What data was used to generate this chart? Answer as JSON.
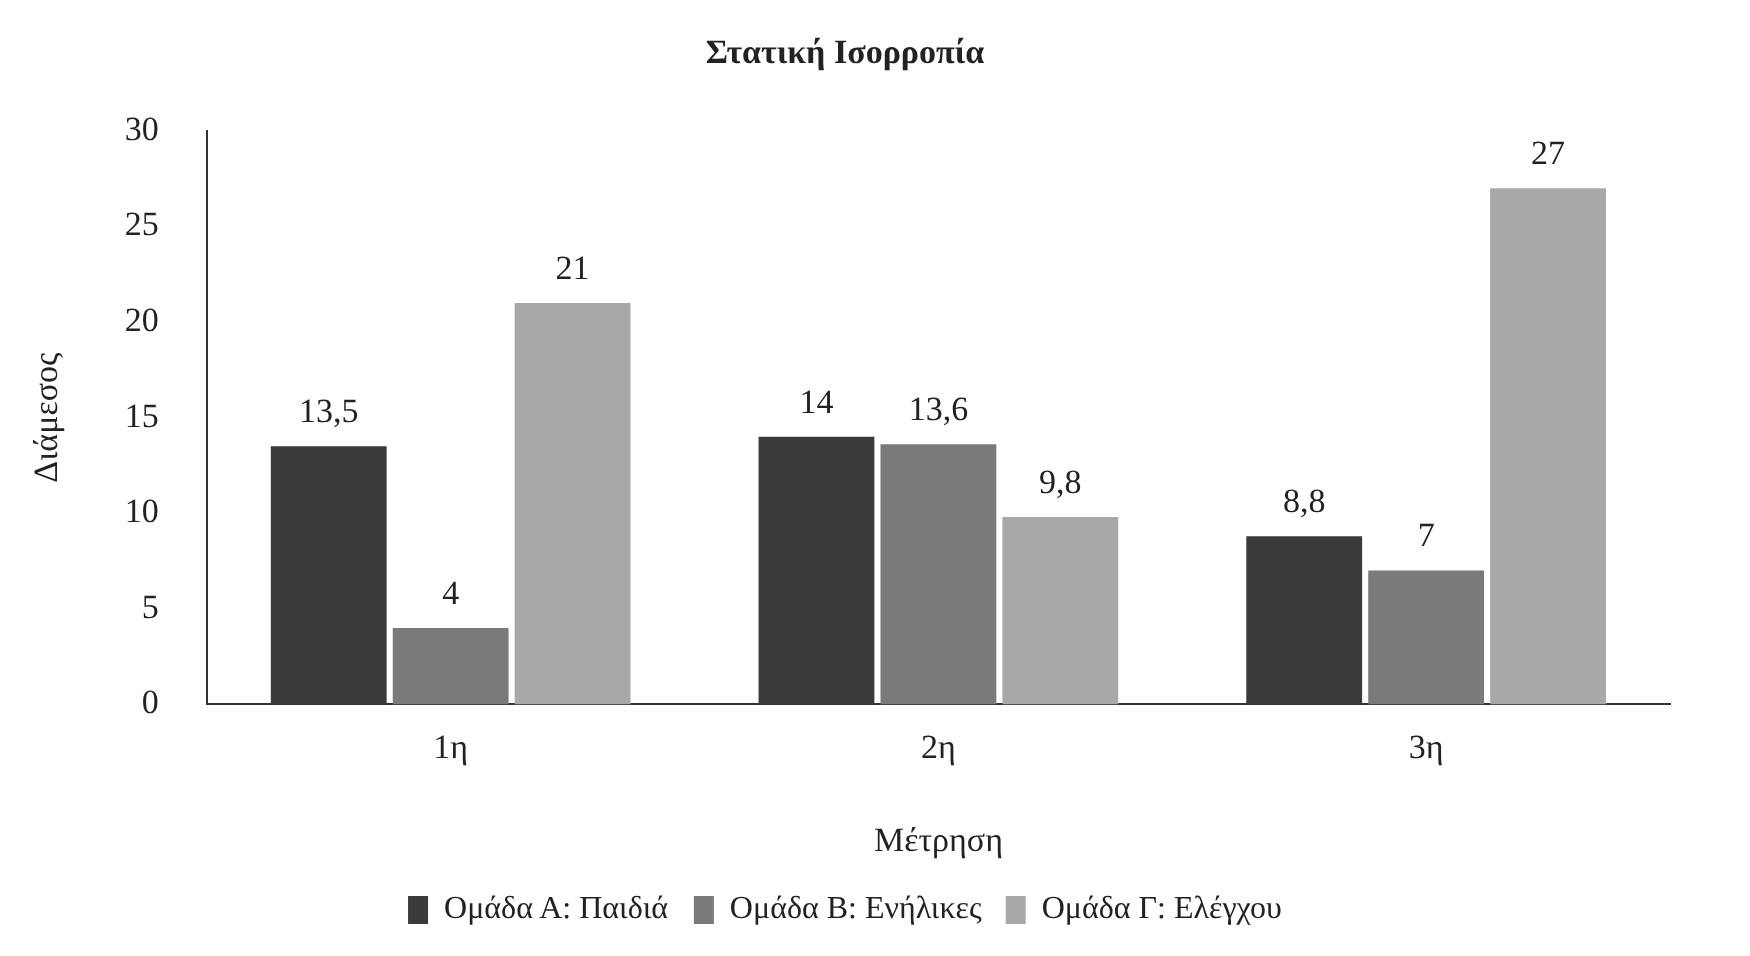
{
  "chart_data": {
    "type": "bar",
    "title": "Στατική Ισορροπία",
    "xlabel": "Μέτρηση",
    "ylabel": "Διάμεσος",
    "categories": [
      "1η",
      "2η",
      "3η"
    ],
    "series": [
      {
        "name": "Ομάδα Α: Παιδιά",
        "color": "#3a3a3a",
        "values": [
          13.5,
          14,
          8.8
        ],
        "value_labels": [
          "13,5",
          "14",
          "8,8"
        ]
      },
      {
        "name": "Ομάδα Β: Ενήλικες",
        "color": "#7a7a7a",
        "values": [
          4,
          13.6,
          7
        ],
        "value_labels": [
          "4",
          "13,6",
          "7"
        ]
      },
      {
        "name": "Ομάδα Γ: Ελέγχου",
        "color": "#a8a8a8",
        "values": [
          21,
          9.8,
          27
        ],
        "value_labels": [
          "21",
          "9,8",
          "27"
        ]
      }
    ],
    "ylim": [
      0,
      30
    ],
    "yticks": [
      0,
      5,
      10,
      15,
      20,
      25,
      30
    ],
    "grid": false,
    "legend": "bottom"
  }
}
